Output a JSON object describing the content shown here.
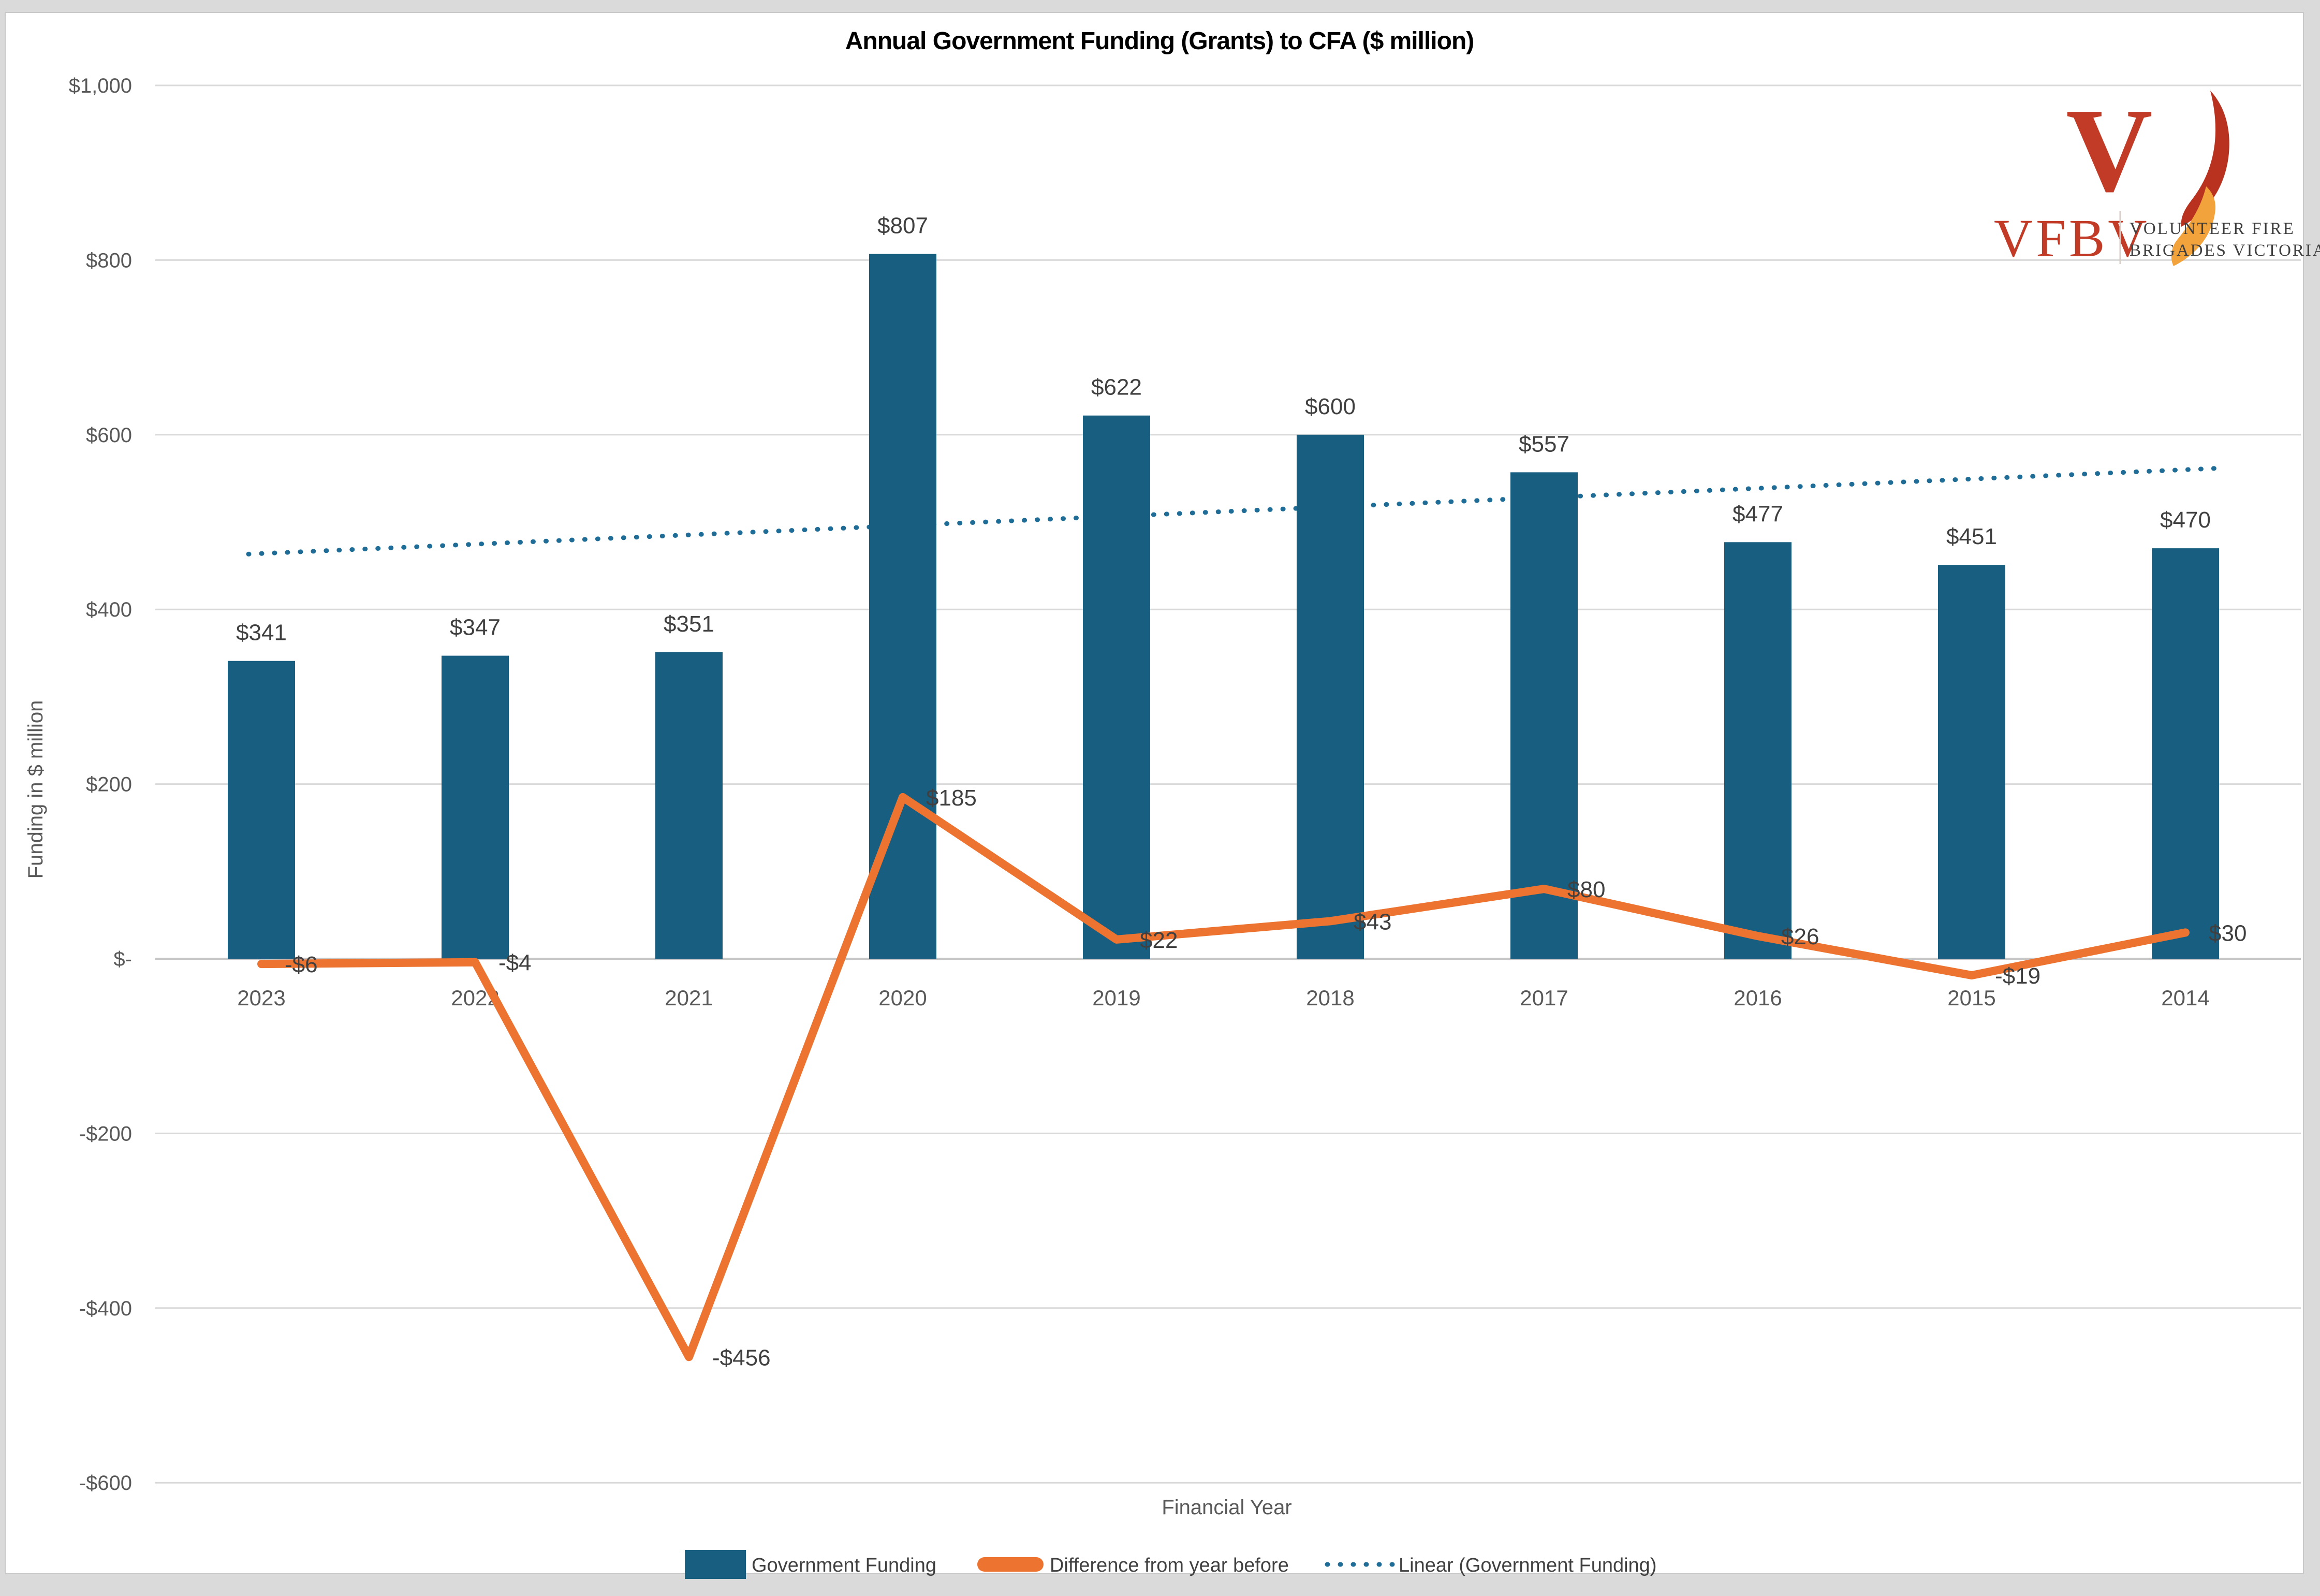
{
  "window": {
    "background": "#DADADA",
    "chart_background": "#FFFFFF"
  },
  "chart_data": {
    "type": "combo",
    "title": "Annual Government Funding (Grants) to CFA ($ million)",
    "xlabel": "Financial Year",
    "ylabel": "Funding in $ million",
    "categories": [
      "2023",
      "2022",
      "2021",
      "2020",
      "2019",
      "2018",
      "2017",
      "2016",
      "2015",
      "2014"
    ],
    "series": [
      {
        "name": "Government Funding",
        "type": "bar",
        "color": "#175E80",
        "values": [
          341,
          347,
          351,
          807,
          622,
          600,
          557,
          477,
          451,
          470
        ],
        "labels": [
          "$341",
          "$347",
          "$351",
          "$807",
          "$622",
          "$600",
          "$557",
          "$477",
          "$451",
          "$470"
        ]
      },
      {
        "name": "Difference from year before",
        "type": "line",
        "color": "#ED7330",
        "values": [
          -6,
          -4,
          -456,
          185,
          22,
          43,
          80,
          26,
          -19,
          30
        ],
        "labels": [
          "-$6",
          "-$4",
          "-$456",
          "$185",
          "$22",
          "$43",
          "$80",
          "$26",
          "-$19",
          "$30"
        ]
      },
      {
        "name": "Linear (Government Funding)",
        "type": "trendline",
        "style": "dotted",
        "color": "#1F6D96",
        "trend_values": [
          464,
          560
        ]
      }
    ],
    "y_axis": {
      "min": -600,
      "max": 1000,
      "step": 200,
      "tick_labels": [
        "$1,000",
        "$800",
        "$600",
        "$400",
        "$200",
        "$-",
        "-$200",
        "-$400",
        "-$600"
      ]
    },
    "grid": true,
    "legend_position": "bottom"
  },
  "logo": {
    "acronym": "VFBV",
    "line1": "VOLUNTEER FIRE",
    "line2": "BRIGADES VICTORIA"
  }
}
